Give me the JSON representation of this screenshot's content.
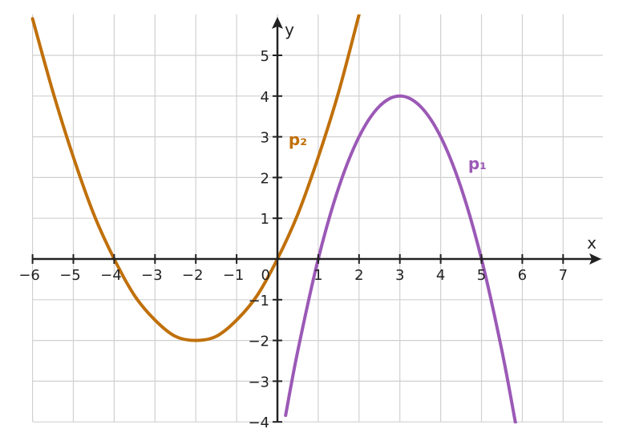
{
  "chart_data": {
    "type": "line",
    "xlabel": "x",
    "ylabel": "y",
    "xlim": [
      -6,
      8
    ],
    "ylim": [
      -4,
      6
    ],
    "grid": true,
    "x_ticks": [
      {
        "value": -6,
        "label": "−6"
      },
      {
        "value": -5,
        "label": "−5"
      },
      {
        "value": -4,
        "label": "−4"
      },
      {
        "value": -3,
        "label": "−3"
      },
      {
        "value": -2,
        "label": "−2"
      },
      {
        "value": -1,
        "label": "−1"
      },
      {
        "value": 1,
        "label": "1"
      },
      {
        "value": 2,
        "label": "2"
      },
      {
        "value": 3,
        "label": "3"
      },
      {
        "value": 4,
        "label": "4"
      },
      {
        "value": 5,
        "label": "5"
      },
      {
        "value": 6,
        "label": "6"
      },
      {
        "value": 7,
        "label": "7"
      }
    ],
    "y_ticks": [
      {
        "value": 5,
        "label": "5"
      },
      {
        "value": 4,
        "label": "4"
      },
      {
        "value": 3,
        "label": "3"
      },
      {
        "value": 2,
        "label": "2"
      },
      {
        "value": 1,
        "label": "1"
      },
      {
        "value": -1,
        "label": "−1"
      },
      {
        "value": -2,
        "label": "−2"
      },
      {
        "value": -3,
        "label": "−3"
      },
      {
        "value": -4,
        "label": "−4"
      }
    ],
    "origin_label": "0",
    "series": [
      {
        "name": "p₁",
        "color": "#9b59b6",
        "label_at": [
          4.9,
          2.2
        ],
        "points": [
          [
            0.2,
            -3.84
          ],
          [
            0.5,
            -2.25
          ],
          [
            1,
            0
          ],
          [
            1.5,
            1.75
          ],
          [
            2,
            3
          ],
          [
            2.5,
            3.75
          ],
          [
            3,
            4
          ],
          [
            3.5,
            3.75
          ],
          [
            4,
            3
          ],
          [
            4.5,
            1.75
          ],
          [
            5,
            0
          ],
          [
            5.5,
            -2.25
          ],
          [
            5.85,
            -4.12
          ]
        ]
      },
      {
        "name": "p₂",
        "color": "#c0700a",
        "label_at": [
          0.5,
          2.8
        ],
        "points": [
          [
            -6,
            5.9
          ],
          [
            -5.5,
            4.1
          ],
          [
            -5,
            2.5
          ],
          [
            -4.5,
            1.1
          ],
          [
            -4,
            0
          ],
          [
            -3.5,
            -0.9
          ],
          [
            -3,
            -1.5
          ],
          [
            -2.5,
            -1.9
          ],
          [
            -2,
            -2
          ],
          [
            -1.5,
            -1.9
          ],
          [
            -1,
            -1.5
          ],
          [
            -0.5,
            -0.9
          ],
          [
            0,
            0
          ],
          [
            0.5,
            1.1
          ],
          [
            1,
            2.5
          ],
          [
            1.5,
            4.1
          ],
          [
            2,
            6
          ]
        ]
      }
    ]
  }
}
